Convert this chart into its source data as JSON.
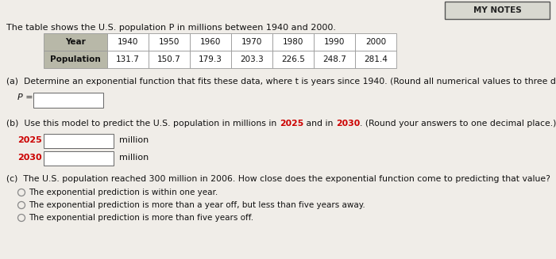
{
  "title": "The table shows the U.S. population P in millions between 1940 and 2000.",
  "header_bg": "#b8b8a8",
  "table_years": [
    "Year",
    "1940",
    "1950",
    "1960",
    "1970",
    "1980",
    "1990",
    "2000"
  ],
  "table_pop": [
    "Population",
    "131.7",
    "150.7",
    "179.3",
    "203.3",
    "226.5",
    "248.7",
    "281.4"
  ],
  "part_a_label": "(a)  Determine an exponential function that fits these data, where t is years since 1940. (Round all numerical values to three decimal places.)",
  "p_label": "P =",
  "part_b_prefix": "(b)  Use this model to predict the U.S. population in millions in ",
  "part_b_2025": "2025",
  "part_b_and": " and in ",
  "part_b_2030": "2030",
  "part_b_end": ". (Round your answers to one decimal place.)",
  "year_2025": "2025",
  "year_2030": "2030",
  "million_label": "million",
  "part_c_label": "(c)  The U.S. population reached 300 million in 2006. How close does the exponential function come to predicting that value?",
  "radio_1": "The exponential prediction is within one year.",
  "radio_2": "The exponential prediction is more than a year off, but less than five years away.",
  "radio_3": "The exponential prediction is more than five years off.",
  "highlight_color": "#cc0000",
  "bg_color": "#f0ede8",
  "table_border": "#999999",
  "header_text_color": "#111111",
  "body_bg": "#ffffff",
  "notes_text": "MY NOTES",
  "notes_border": "#555555"
}
